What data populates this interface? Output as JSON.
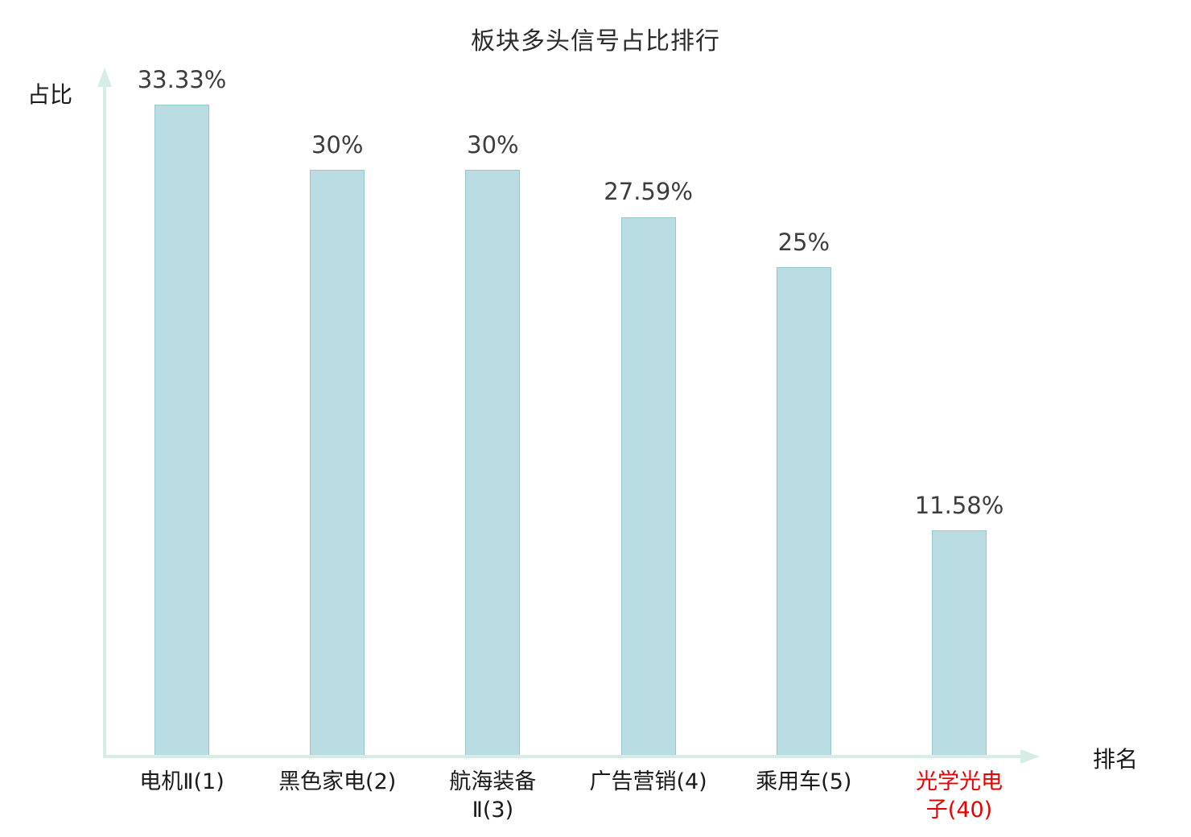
{
  "chart_data": {
    "type": "bar",
    "title": "板块多头信号占比排行",
    "xlabel": "排名",
    "ylabel": "占比",
    "categories": [
      "电机Ⅱ(1)",
      "黑色家电(2)",
      "航海装备Ⅱ(3)",
      "广告营销(4)",
      "乘用车(5)",
      "光学光电子(40)"
    ],
    "tick_labels": [
      "电机Ⅱ(1)",
      "黑色家电(2)",
      "航海装备\nⅡ(3)",
      "广告营销(4)",
      "乘用车(5)",
      "光学光电\n子(40)"
    ],
    "values": [
      33.33,
      30,
      30,
      27.59,
      25,
      11.58
    ],
    "value_labels": [
      "33.33%",
      "30%",
      "30%",
      "27.59%",
      "25%",
      "11.58%"
    ],
    "highlight_index": 5,
    "highlight_color": "#ea0000",
    "bar_color": "#b9dde2",
    "bar_border_color": "#96c6ce",
    "axis_color": "#d6ece7",
    "ylim": [
      0,
      35
    ],
    "grid": false,
    "legend": false
  }
}
